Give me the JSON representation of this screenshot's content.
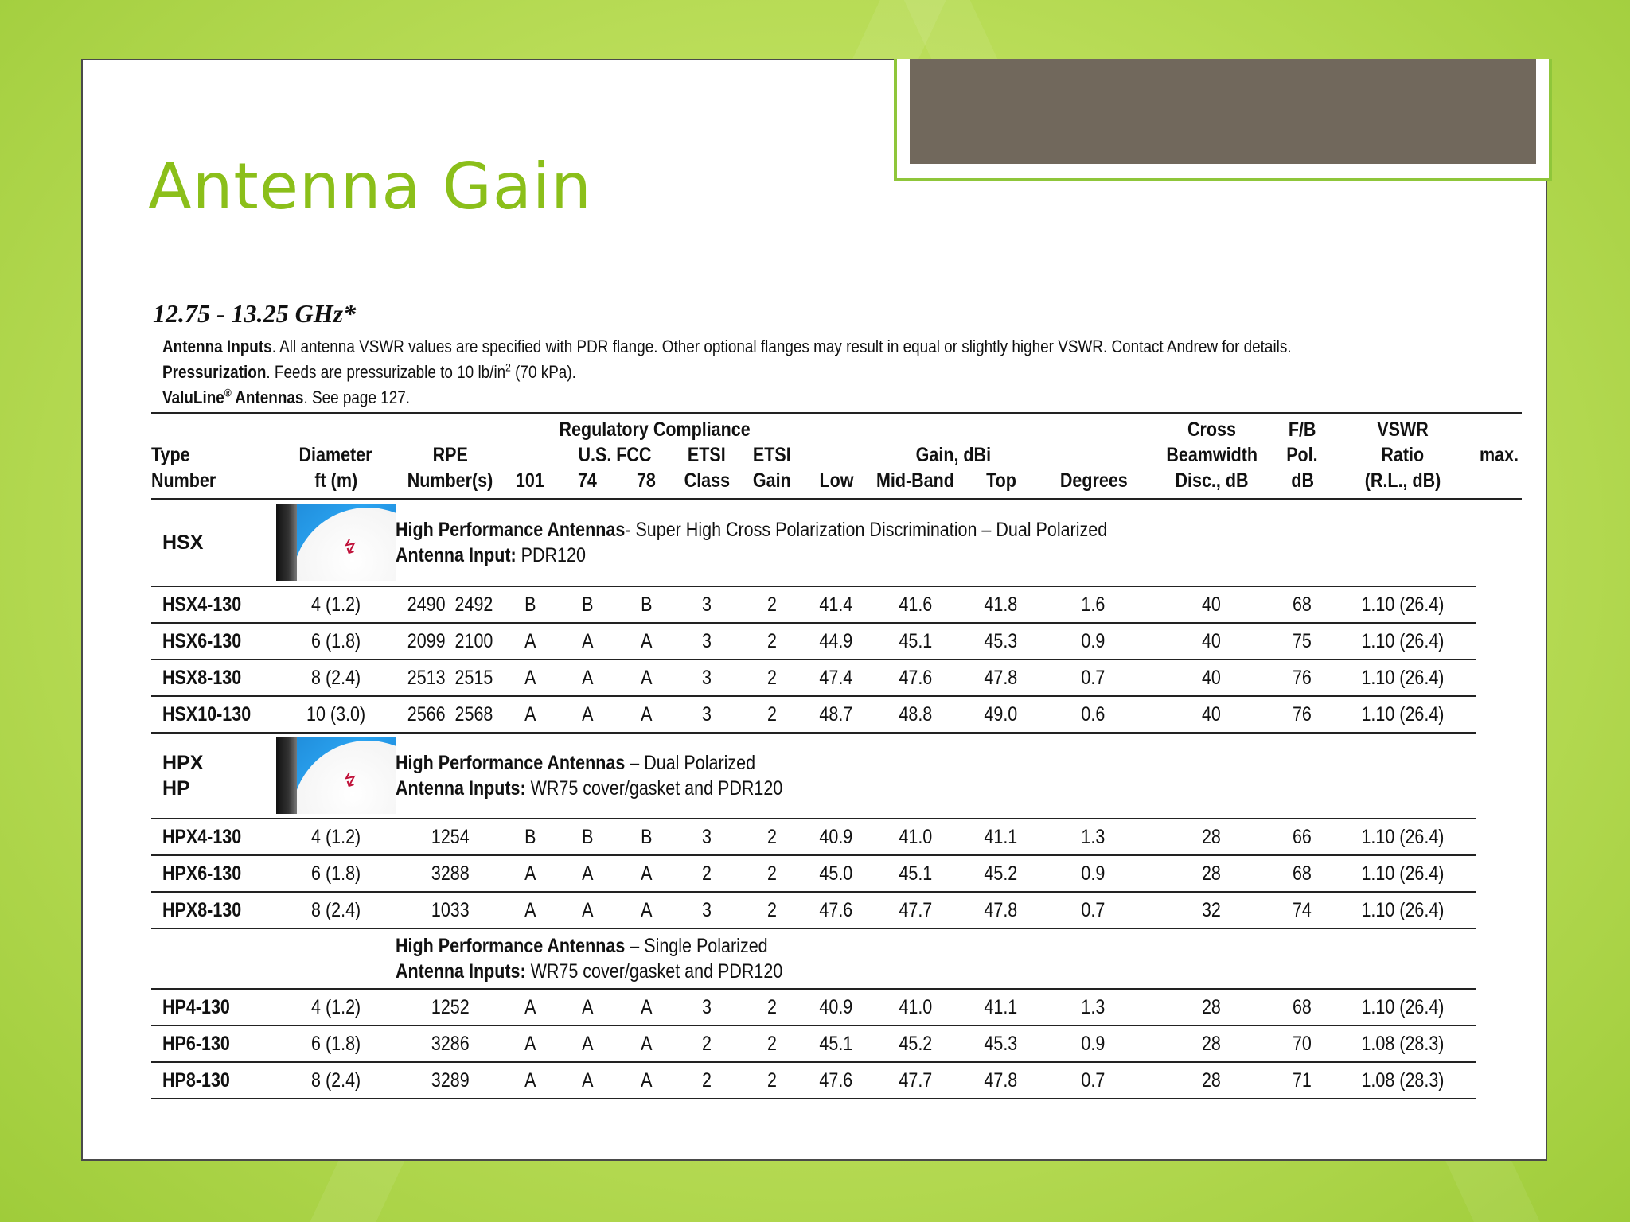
{
  "slide": {
    "title": "Antenna Gain"
  },
  "spec": {
    "frequency": "12.75 - 13.25 GHz*",
    "notes": {
      "inputs_label": "Antenna Inputs",
      "inputs_text": ". All antenna VSWR values are specified with PDR flange. Other optional flanges may result in equal or slightly higher VSWR. Contact Andrew for details.",
      "press_label": "Pressurization",
      "press_text_a": ". Feeds are pressurizable to 10 lb/in",
      "press_sup": "2",
      "press_text_b": " (70 kPa).",
      "valuline_label": "ValuLine",
      "valuline_sup": "®",
      "valuline_label_b": " Antennas",
      "valuline_text": ". See page 127."
    },
    "headers": {
      "type": [
        "Type",
        "Number"
      ],
      "diameter": [
        "Diameter",
        "ft (m)"
      ],
      "rpe": [
        "RPE",
        "Number(s)"
      ],
      "regulatory": "Regulatory Compliance",
      "fcc": "U.S. FCC",
      "c101": "101",
      "c74": "74",
      "c78": "78",
      "etsi_class": [
        "ETSI",
        "Class"
      ],
      "etsi_gain": [
        "ETSI",
        "Gain"
      ],
      "gain": "Gain, dBi",
      "low": "Low",
      "mid": "Mid-Band",
      "top": "Top",
      "beam": [
        "Beamwidth",
        "Degrees"
      ],
      "cross": [
        "Cross",
        "Pol.",
        "Disc., dB"
      ],
      "fb": [
        "F/B",
        "Ratio",
        "dB"
      ],
      "vswr": [
        "VSWR",
        "max.",
        "(R.L., dB)"
      ]
    },
    "groups": [
      {
        "name_lines": [
          "HSX"
        ],
        "desc_bold": "High Performance Antennas",
        "desc_rest": "- Super High Cross Polarization Discrimination – Dual Polarized",
        "input_label": "Antenna Input:",
        "input_value": " PDR120",
        "has_image": true,
        "rows": [
          [
            "HSX4-130",
            "4 (1.2)",
            "2490  2492",
            "B",
            "B",
            "B",
            "3",
            "2",
            "41.4",
            "41.6",
            "41.8",
            "1.6",
            "40",
            "68",
            "1.10 (26.4)"
          ],
          [
            "HSX6-130",
            "6 (1.8)",
            "2099  2100",
            "A",
            "A",
            "A",
            "3",
            "2",
            "44.9",
            "45.1",
            "45.3",
            "0.9",
            "40",
            "75",
            "1.10 (26.4)"
          ],
          [
            "HSX8-130",
            "8 (2.4)",
            "2513  2515",
            "A",
            "A",
            "A",
            "3",
            "2",
            "47.4",
            "47.6",
            "47.8",
            "0.7",
            "40",
            "76",
            "1.10 (26.4)"
          ],
          [
            "HSX10-130",
            "10 (3.0)",
            "2566  2568",
            "A",
            "A",
            "A",
            "3",
            "2",
            "48.7",
            "48.8",
            "49.0",
            "0.6",
            "40",
            "76",
            "1.10 (26.4)"
          ]
        ]
      },
      {
        "name_lines": [
          "HPX",
          "HP"
        ],
        "desc_bold": "High Performance Antennas",
        "desc_rest": " – Dual Polarized",
        "input_label": "Antenna Inputs:",
        "input_value": " WR75 cover/gasket and PDR120",
        "has_image": true,
        "rows": [
          [
            "HPX4-130",
            "4 (1.2)",
            "1254",
            "B",
            "B",
            "B",
            "3",
            "2",
            "40.9",
            "41.0",
            "41.1",
            "1.3",
            "28",
            "66",
            "1.10 (26.4)"
          ],
          [
            "HPX6-130",
            "6 (1.8)",
            "3288",
            "A",
            "A",
            "A",
            "2",
            "2",
            "45.0",
            "45.1",
            "45.2",
            "0.9",
            "28",
            "68",
            "1.10 (26.4)"
          ],
          [
            "HPX8-130",
            "8 (2.4)",
            "1033",
            "A",
            "A",
            "A",
            "3",
            "2",
            "47.6",
            "47.7",
            "47.8",
            "0.7",
            "32",
            "74",
            "1.10 (26.4)"
          ]
        ]
      },
      {
        "name_lines": [],
        "desc_bold": "High Performance Antennas",
        "desc_rest": " – Single Polarized",
        "input_label": "Antenna Inputs:",
        "input_value": " WR75 cover/gasket and PDR120",
        "has_image": false,
        "rows": [
          [
            "HP4-130",
            "4 (1.2)",
            "1252",
            "A",
            "A",
            "A",
            "3",
            "2",
            "40.9",
            "41.0",
            "41.1",
            "1.3",
            "28",
            "68",
            "1.10 (26.4)"
          ],
          [
            "HP6-130",
            "6 (1.8)",
            "3286",
            "A",
            "A",
            "A",
            "2",
            "2",
            "45.1",
            "45.2",
            "45.3",
            "0.9",
            "28",
            "70",
            "1.08 (28.3)"
          ],
          [
            "HP8-130",
            "8 (2.4)",
            "3289",
            "A",
            "A",
            "A",
            "2",
            "2",
            "47.6",
            "47.7",
            "47.8",
            "0.7",
            "28",
            "71",
            "1.08 (28.3)"
          ]
        ]
      }
    ]
  }
}
